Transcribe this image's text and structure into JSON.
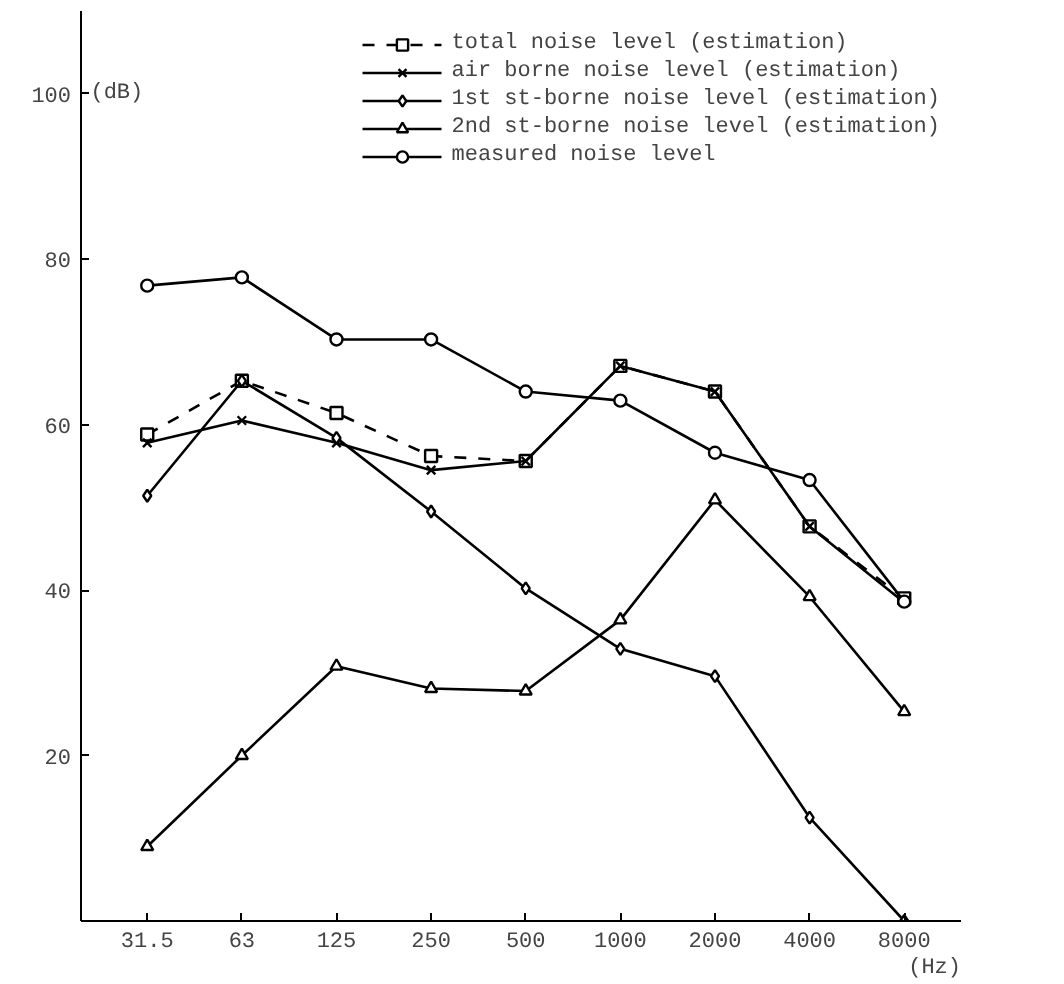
{
  "chart_data": {
    "type": "line",
    "xlabel": "(Hz)",
    "ylabel": "(dB)",
    "categories": [
      "31.5",
      "63",
      "125",
      "250",
      "500",
      "1000",
      "2000",
      "4000",
      "8000"
    ],
    "ylim": [
      0,
      110
    ],
    "yticks": [
      20,
      40,
      60,
      80,
      100
    ],
    "grid": false,
    "legend": "top right",
    "series": [
      {
        "name": "total noise level (estimation)",
        "color": "#000000",
        "marker": "square",
        "line_style": "dashed",
        "values": [
          58.8,
          65.3,
          61.4,
          56.2,
          55.6,
          67.1,
          64,
          47.7,
          39
        ]
      },
      {
        "name": "air borne noise level (estimation)",
        "color": "#000000",
        "marker": "cross",
        "line_style": "solid",
        "values": [
          57.8,
          60.5,
          57.8,
          54.5,
          55.6,
          67.1,
          64,
          47.7,
          38.5
        ]
      },
      {
        "name": "1st st-borne noise level (estimation)",
        "color": "#000000",
        "marker": "diamond",
        "line_style": "solid",
        "values": [
          51.4,
          65.3,
          58.4,
          49.5,
          40.2,
          32.9,
          29.6,
          12.5,
          0
        ]
      },
      {
        "name": "2nd st-borne noise level (estimation)",
        "color": "#000000",
        "marker": "triangle",
        "line_style": "solid",
        "values": [
          9,
          20,
          30.8,
          28.1,
          27.8,
          36.4,
          50.9,
          39.2,
          25.3
        ]
      },
      {
        "name": "measured noise level",
        "color": "#000000",
        "marker": "circle",
        "line_style": "solid",
        "values": [
          76.8,
          77.8,
          70.3,
          70.3,
          64,
          62.9,
          56.6,
          53.3,
          38.6
        ]
      }
    ]
  }
}
